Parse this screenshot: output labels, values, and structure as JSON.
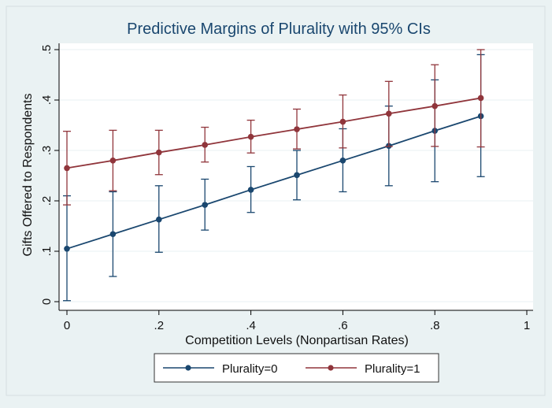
{
  "chart_data": {
    "type": "line",
    "title": "Predictive Margins of Plurality with 95% CIs",
    "xlabel": "Competition Levels (Nonpartisan Rates)",
    "ylabel": "Gifts Offered to Respondents",
    "x": [
      0,
      0.1,
      0.2,
      0.3,
      0.4,
      0.5,
      0.6,
      0.7,
      0.8,
      0.9
    ],
    "xlim": [
      0,
      1
    ],
    "ylim": [
      0,
      0.5
    ],
    "xticks": [
      0,
      0.2,
      0.4,
      0.6,
      0.8,
      1
    ],
    "xtick_labels": [
      "0",
      ".2",
      ".4",
      ".6",
      ".8",
      "1"
    ],
    "yticks": [
      0,
      0.1,
      0.2,
      0.3,
      0.4,
      0.5
    ],
    "ytick_labels": [
      "0",
      ".1",
      ".2",
      ".3",
      ".4",
      ".5"
    ],
    "grid": true,
    "legend_position": "bottom",
    "series": [
      {
        "name": "Plurality=0",
        "color": "#1a476f",
        "values": [
          0.105,
          0.134,
          0.163,
          0.192,
          0.222,
          0.251,
          0.28,
          0.309,
          0.339,
          0.368
        ],
        "ci_low": [
          0.002,
          0.05,
          0.098,
          0.142,
          0.177,
          0.202,
          0.218,
          0.23,
          0.238,
          0.248
        ],
        "ci_high": [
          0.21,
          0.218,
          0.23,
          0.243,
          0.268,
          0.3,
          0.343,
          0.388,
          0.44,
          0.49
        ]
      },
      {
        "name": "Plurality=1",
        "color": "#90353b",
        "values": [
          0.265,
          0.28,
          0.296,
          0.311,
          0.327,
          0.342,
          0.357,
          0.373,
          0.388,
          0.404
        ],
        "ci_low": [
          0.192,
          0.22,
          0.252,
          0.277,
          0.295,
          0.303,
          0.305,
          0.308,
          0.308,
          0.307
        ],
        "ci_high": [
          0.338,
          0.34,
          0.34,
          0.346,
          0.36,
          0.382,
          0.41,
          0.437,
          0.47,
          0.5
        ]
      }
    ]
  }
}
